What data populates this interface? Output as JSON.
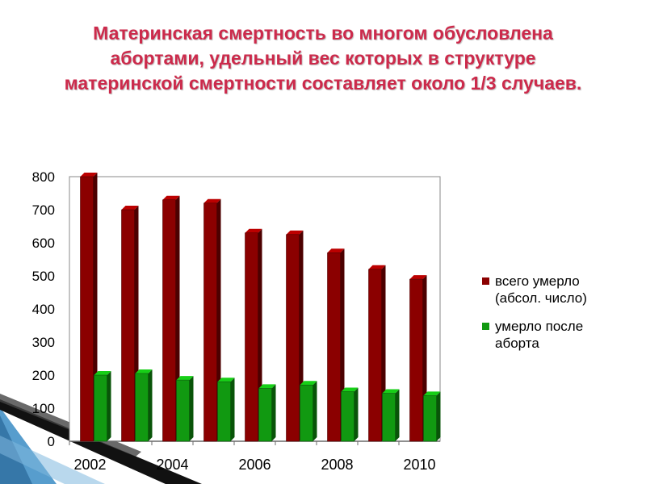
{
  "title_lines": [
    "Материнская смертность во многом обусловлена",
    "абортами, удельный вес которых в структуре",
    "материнской смертности составляет около 1/3 случаев."
  ],
  "colors": {
    "title": "#cc2a4b",
    "series_total": "#8b0000",
    "series_abortion": "#119911",
    "decor_blue": "#3a8cc4"
  },
  "chart_data": {
    "type": "bar",
    "categories": [
      "2002",
      "2003",
      "2004",
      "2005",
      "2006",
      "2007",
      "2008",
      "2009",
      "2010"
    ],
    "x_tick_labels": [
      "2002",
      "",
      "2004",
      "",
      "2006",
      "",
      "2008",
      "",
      "2010"
    ],
    "series": [
      {
        "name": "всего умерло (абсол. число)",
        "values": [
          800,
          700,
          730,
          720,
          630,
          625,
          570,
          520,
          490
        ]
      },
      {
        "name": "умерло после аборта",
        "values": [
          200,
          205,
          185,
          180,
          160,
          170,
          150,
          145,
          138
        ]
      }
    ],
    "legend_lines": [
      [
        "всего умерло",
        "(абсол. число)"
      ],
      [
        "умерло после",
        "аборта"
      ]
    ],
    "y_ticks": [
      0,
      100,
      200,
      300,
      400,
      500,
      600,
      700,
      800
    ],
    "ylim": [
      0,
      800
    ],
    "grid": false,
    "legend_position": "right",
    "xlabel": "",
    "ylabel": ""
  }
}
